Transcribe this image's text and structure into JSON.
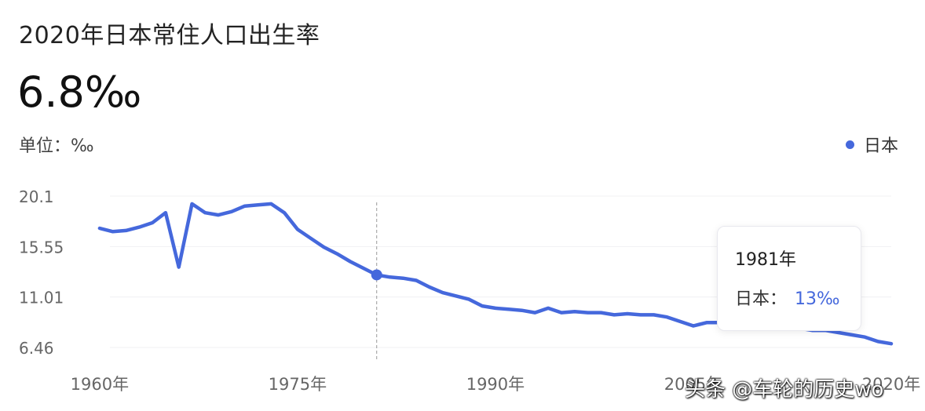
{
  "header": {
    "title": "2020年日本常住人口出生率",
    "big_value": "6.8‰",
    "unit_label": "单位：‰"
  },
  "legend": {
    "label": "日本",
    "color": "#4568dc"
  },
  "tooltip": {
    "year": "1981年",
    "series": "日本：",
    "value": "13‰"
  },
  "watermark": "头条 @车轮的历史wo",
  "chart_data": {
    "type": "line",
    "ylim": [
      6.46,
      20.1
    ],
    "y_ticks": [
      "20.1",
      "15.55",
      "11.01",
      "6.46"
    ],
    "x_ticks": [
      {
        "x": 1960,
        "label": "1960年"
      },
      {
        "x": 1975,
        "label": "1975年"
      },
      {
        "x": 1990,
        "label": "1990年"
      },
      {
        "x": 2005,
        "label": "2005年"
      },
      {
        "x": 2020,
        "label": "2020年"
      }
    ],
    "xlim": [
      1958.4,
      2020.0
    ],
    "highlight_x": 1981,
    "series": [
      {
        "name": "日本",
        "color": "#4568dc",
        "x": [
          1960,
          1961,
          1962,
          1963,
          1964,
          1965,
          1966,
          1967,
          1968,
          1969,
          1970,
          1971,
          1972,
          1973,
          1974,
          1975,
          1976,
          1977,
          1978,
          1979,
          1980,
          1981,
          1982,
          1983,
          1984,
          1985,
          1986,
          1987,
          1988,
          1989,
          1990,
          1991,
          1992,
          1993,
          1994,
          1995,
          1996,
          1997,
          1998,
          1999,
          2000,
          2001,
          2002,
          2003,
          2004,
          2005,
          2006,
          2007,
          2008,
          2009,
          2010,
          2011,
          2012,
          2013,
          2014,
          2015,
          2016,
          2017,
          2018,
          2019,
          2020
        ],
        "y": [
          17.2,
          16.9,
          17.0,
          17.3,
          17.7,
          18.6,
          13.7,
          19.4,
          18.6,
          18.4,
          18.7,
          19.2,
          19.3,
          19.4,
          18.6,
          17.1,
          16.3,
          15.5,
          14.9,
          14.2,
          13.6,
          13.0,
          12.8,
          12.7,
          12.5,
          11.9,
          11.4,
          11.1,
          10.8,
          10.2,
          10.0,
          9.9,
          9.8,
          9.6,
          10.0,
          9.6,
          9.7,
          9.6,
          9.6,
          9.4,
          9.5,
          9.4,
          9.4,
          9.2,
          8.8,
          8.4,
          8.7,
          8.7,
          8.7,
          8.5,
          8.5,
          8.3,
          8.2,
          8.2,
          8.0,
          8.0,
          7.8,
          7.6,
          7.4,
          7.0,
          6.8
        ]
      }
    ]
  }
}
